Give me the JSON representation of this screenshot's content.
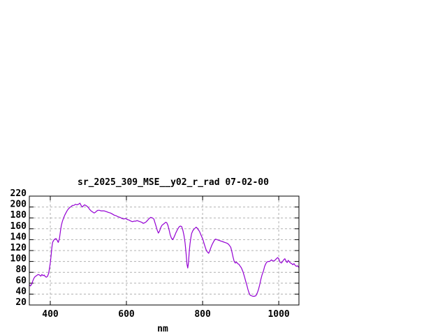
{
  "page": {
    "background": "#ffffff"
  },
  "chart": {
    "title": "sr_2025_309_MSE__y02_r_rad 07-02-00",
    "x_axis_label": "nm"
  },
  "chart_data": {
    "type": "line",
    "title": "sr_2025_309_MSE__y02_r_rad 07-02-00",
    "xlabel": "nm",
    "ylabel": "",
    "x_range": [
      345,
      1053
    ],
    "y_range": [
      20,
      220
    ],
    "x_ticks": [
      400,
      600,
      800,
      1000
    ],
    "y_ticks": [
      20,
      40,
      60,
      80,
      100,
      120,
      140,
      160,
      180,
      200,
      220
    ],
    "grid": true,
    "legend": "none",
    "line_color": "#9400D3",
    "grid_color": "#b0b0b0",
    "axis_color": "#000000",
    "series": [
      {
        "name": "sr_2025_309_MSE__y02_r_rad",
        "points": [
          [
            345,
            57
          ],
          [
            348,
            55
          ],
          [
            351,
            58
          ],
          [
            354,
            64
          ],
          [
            357,
            69
          ],
          [
            360,
            72
          ],
          [
            364,
            74
          ],
          [
            368,
            76
          ],
          [
            372,
            75
          ],
          [
            375,
            73
          ],
          [
            378,
            76
          ],
          [
            381,
            74
          ],
          [
            384,
            75
          ],
          [
            387,
            72
          ],
          [
            390,
            71
          ],
          [
            393,
            73
          ],
          [
            396,
            79
          ],
          [
            398,
            88
          ],
          [
            400,
            97
          ],
          [
            402,
            110
          ],
          [
            404,
            125
          ],
          [
            406,
            135
          ],
          [
            409,
            139
          ],
          [
            412,
            141
          ],
          [
            415,
            142
          ],
          [
            418,
            139
          ],
          [
            421,
            135
          ],
          [
            424,
            142
          ],
          [
            427,
            157
          ],
          [
            429,
            166
          ],
          [
            432,
            174
          ],
          [
            435,
            180
          ],
          [
            438,
            185
          ],
          [
            441,
            189
          ],
          [
            444,
            193
          ],
          [
            447,
            196
          ],
          [
            451,
            199
          ],
          [
            455,
            201
          ],
          [
            458,
            203
          ],
          [
            462,
            203
          ],
          [
            466,
            205
          ],
          [
            470,
            204
          ],
          [
            474,
            205
          ],
          [
            478,
            207
          ],
          [
            481,
            203
          ],
          [
            484,
            200
          ],
          [
            487,
            202
          ],
          [
            490,
            204
          ],
          [
            493,
            203
          ],
          [
            497,
            201
          ],
          [
            500,
            199
          ],
          [
            503,
            196
          ],
          [
            507,
            193
          ],
          [
            511,
            191
          ],
          [
            515,
            189
          ],
          [
            518,
            190
          ],
          [
            521,
            192
          ],
          [
            525,
            194
          ],
          [
            529,
            194
          ],
          [
            533,
            193
          ],
          [
            537,
            193
          ],
          [
            541,
            193
          ],
          [
            545,
            192
          ],
          [
            549,
            191
          ],
          [
            553,
            190
          ],
          [
            558,
            189
          ],
          [
            563,
            187
          ],
          [
            568,
            185
          ],
          [
            573,
            184
          ],
          [
            578,
            182
          ],
          [
            583,
            181
          ],
          [
            588,
            179
          ],
          [
            593,
            178
          ],
          [
            598,
            179
          ],
          [
            602,
            177
          ],
          [
            607,
            176
          ],
          [
            612,
            174
          ],
          [
            616,
            173
          ],
          [
            620,
            174
          ],
          [
            624,
            174
          ],
          [
            628,
            175
          ],
          [
            632,
            174
          ],
          [
            636,
            173
          ],
          [
            640,
            172
          ],
          [
            644,
            170
          ],
          [
            648,
            171
          ],
          [
            652,
            173
          ],
          [
            656,
            176
          ],
          [
            660,
            179
          ],
          [
            664,
            181
          ],
          [
            668,
            180
          ],
          [
            672,
            178
          ],
          [
            675,
            171
          ],
          [
            678,
            164
          ],
          [
            681,
            157
          ],
          [
            684,
            152
          ],
          [
            687,
            156
          ],
          [
            690,
            162
          ],
          [
            693,
            166
          ],
          [
            696,
            168
          ],
          [
            700,
            170
          ],
          [
            703,
            172
          ],
          [
            706,
            171
          ],
          [
            709,
            166
          ],
          [
            712,
            158
          ],
          [
            715,
            149
          ],
          [
            718,
            143
          ],
          [
            721,
            140
          ],
          [
            724,
            143
          ],
          [
            727,
            148
          ],
          [
            730,
            153
          ],
          [
            733,
            157
          ],
          [
            736,
            161
          ],
          [
            739,
            164
          ],
          [
            742,
            165
          ],
          [
            745,
            164
          ],
          [
            748,
            158
          ],
          [
            751,
            148
          ],
          [
            754,
            134
          ],
          [
            757,
            112
          ],
          [
            759,
            95
          ],
          [
            761,
            88
          ],
          [
            763,
            98
          ],
          [
            765,
            119
          ],
          [
            767,
            133
          ],
          [
            769,
            143
          ],
          [
            771,
            151
          ],
          [
            774,
            156
          ],
          [
            777,
            159
          ],
          [
            780,
            161
          ],
          [
            783,
            163
          ],
          [
            786,
            161
          ],
          [
            789,
            158
          ],
          [
            792,
            155
          ],
          [
            795,
            150
          ],
          [
            798,
            145
          ],
          [
            801,
            140
          ],
          [
            804,
            133
          ],
          [
            807,
            126
          ],
          [
            810,
            120
          ],
          [
            813,
            117
          ],
          [
            816,
            115
          ],
          [
            819,
            120
          ],
          [
            822,
            126
          ],
          [
            825,
            131
          ],
          [
            828,
            135
          ],
          [
            831,
            139
          ],
          [
            834,
            141
          ],
          [
            838,
            140
          ],
          [
            842,
            139
          ],
          [
            846,
            138
          ],
          [
            850,
            137
          ],
          [
            854,
            136
          ],
          [
            858,
            135
          ],
          [
            862,
            134
          ],
          [
            866,
            133
          ],
          [
            870,
            130
          ],
          [
            874,
            126
          ],
          [
            877,
            118
          ],
          [
            880,
            108
          ],
          [
            883,
            100
          ],
          [
            886,
            97
          ],
          [
            889,
            99
          ],
          [
            892,
            96
          ],
          [
            895,
            95
          ],
          [
            898,
            92
          ],
          [
            902,
            88
          ],
          [
            906,
            81
          ],
          [
            910,
            72
          ],
          [
            913,
            64
          ],
          [
            916,
            57
          ],
          [
            919,
            49
          ],
          [
            922,
            42
          ],
          [
            925,
            38
          ],
          [
            928,
            37
          ],
          [
            932,
            36
          ],
          [
            936,
            36
          ],
          [
            940,
            37
          ],
          [
            944,
            43
          ],
          [
            947,
            49
          ],
          [
            950,
            57
          ],
          [
            953,
            67
          ],
          [
            956,
            75
          ],
          [
            960,
            83
          ],
          [
            963,
            91
          ],
          [
            966,
            96
          ],
          [
            969,
            99
          ],
          [
            972,
            100
          ],
          [
            975,
            100
          ],
          [
            978,
            101
          ],
          [
            981,
            103
          ],
          [
            984,
            101
          ],
          [
            988,
            101
          ],
          [
            991,
            103
          ],
          [
            994,
            105
          ],
          [
            997,
            107
          ],
          [
            1000,
            105
          ],
          [
            1003,
            99
          ],
          [
            1007,
            97
          ],
          [
            1010,
            100
          ],
          [
            1013,
            103
          ],
          [
            1016,
            105
          ],
          [
            1019,
            101
          ],
          [
            1022,
            98
          ],
          [
            1025,
            102
          ],
          [
            1028,
            99
          ],
          [
            1031,
            97
          ],
          [
            1034,
            96
          ],
          [
            1037,
            94
          ],
          [
            1040,
            96
          ],
          [
            1043,
            93
          ],
          [
            1046,
            91
          ],
          [
            1049,
            92
          ],
          [
            1053,
            89
          ]
        ]
      }
    ]
  }
}
